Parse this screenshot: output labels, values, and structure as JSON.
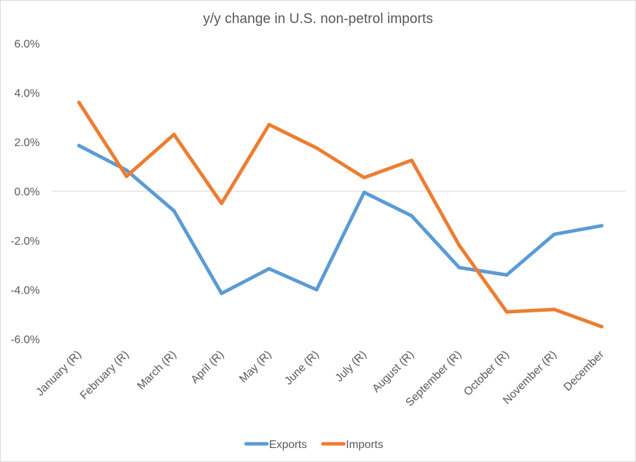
{
  "chart_data": {
    "type": "line",
    "title": "y/y change in U.S. non-petrol imports",
    "categories": [
      "January (R)",
      "February (R)",
      "March (R)",
      "April (R)",
      "May (R)",
      "June (R)",
      "July (R)",
      "August (R)",
      "September (R)",
      "October (R)",
      "November (R)",
      "December"
    ],
    "series": [
      {
        "name": "Exports",
        "color": "#5b9bd5",
        "values": [
          1.85,
          0.85,
          -0.8,
          -4.15,
          -3.15,
          -4.0,
          -0.05,
          -1.0,
          -3.1,
          -3.4,
          -1.75,
          -1.4
        ]
      },
      {
        "name": "Imports",
        "color": "#ed7d31",
        "values": [
          3.6,
          0.6,
          2.3,
          -0.5,
          2.7,
          1.75,
          0.55,
          1.25,
          -2.2,
          -4.9,
          -4.8,
          -5.5
        ]
      }
    ],
    "ylim": [
      -6,
      6
    ],
    "yticks": [
      6,
      4,
      2,
      0,
      -2,
      -4,
      -6
    ],
    "ytick_labels": [
      "6.0%",
      "4.0%",
      "2.0%",
      "0.0%",
      "-2.0%",
      "-4.0%",
      "-6.0%"
    ],
    "legend_position": "bottom",
    "xlabel": "",
    "ylabel": ""
  }
}
